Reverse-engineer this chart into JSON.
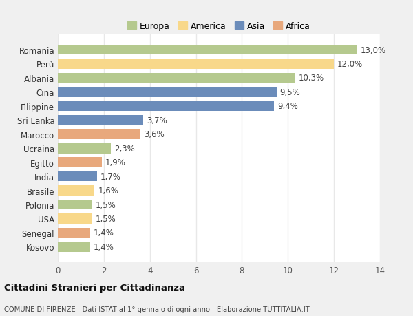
{
  "countries": [
    "Romania",
    "Perù",
    "Albania",
    "Cina",
    "Filippine",
    "Sri Lanka",
    "Marocco",
    "Ucraina",
    "Egitto",
    "India",
    "Brasile",
    "Polonia",
    "USA",
    "Senegal",
    "Kosovo"
  ],
  "values": [
    13.0,
    12.0,
    10.3,
    9.5,
    9.4,
    3.7,
    3.6,
    2.3,
    1.9,
    1.7,
    1.6,
    1.5,
    1.5,
    1.4,
    1.4
  ],
  "labels": [
    "13,0%",
    "12,0%",
    "10,3%",
    "9,5%",
    "9,4%",
    "3,7%",
    "3,6%",
    "2,3%",
    "1,9%",
    "1,7%",
    "1,6%",
    "1,5%",
    "1,5%",
    "1,4%",
    "1,4%"
  ],
  "colors": [
    "#b5c98e",
    "#f8d88a",
    "#b5c98e",
    "#6b8cba",
    "#6b8cba",
    "#6b8cba",
    "#e8a87c",
    "#b5c98e",
    "#e8a87c",
    "#6b8cba",
    "#f8d88a",
    "#b5c98e",
    "#f8d88a",
    "#e8a87c",
    "#b5c98e"
  ],
  "legend_labels": [
    "Europa",
    "America",
    "Asia",
    "Africa"
  ],
  "legend_colors": [
    "#b5c98e",
    "#f8d88a",
    "#6b8cba",
    "#e8a87c"
  ],
  "title": "Cittadini Stranieri per Cittadinanza",
  "subtitle": "COMUNE DI FIRENZE - Dati ISTAT al 1° gennaio di ogni anno - Elaborazione TUTTITALIA.IT",
  "xlim": [
    0,
    14
  ],
  "xticks": [
    0,
    2,
    4,
    6,
    8,
    10,
    12,
    14
  ],
  "background_color": "#f0f0f0",
  "bar_background": "#ffffff",
  "grid_color": "#e8e8e8",
  "label_fontsize": 8.5,
  "bar_height": 0.72,
  "ytick_fontsize": 8.5,
  "xtick_fontsize": 8.5
}
